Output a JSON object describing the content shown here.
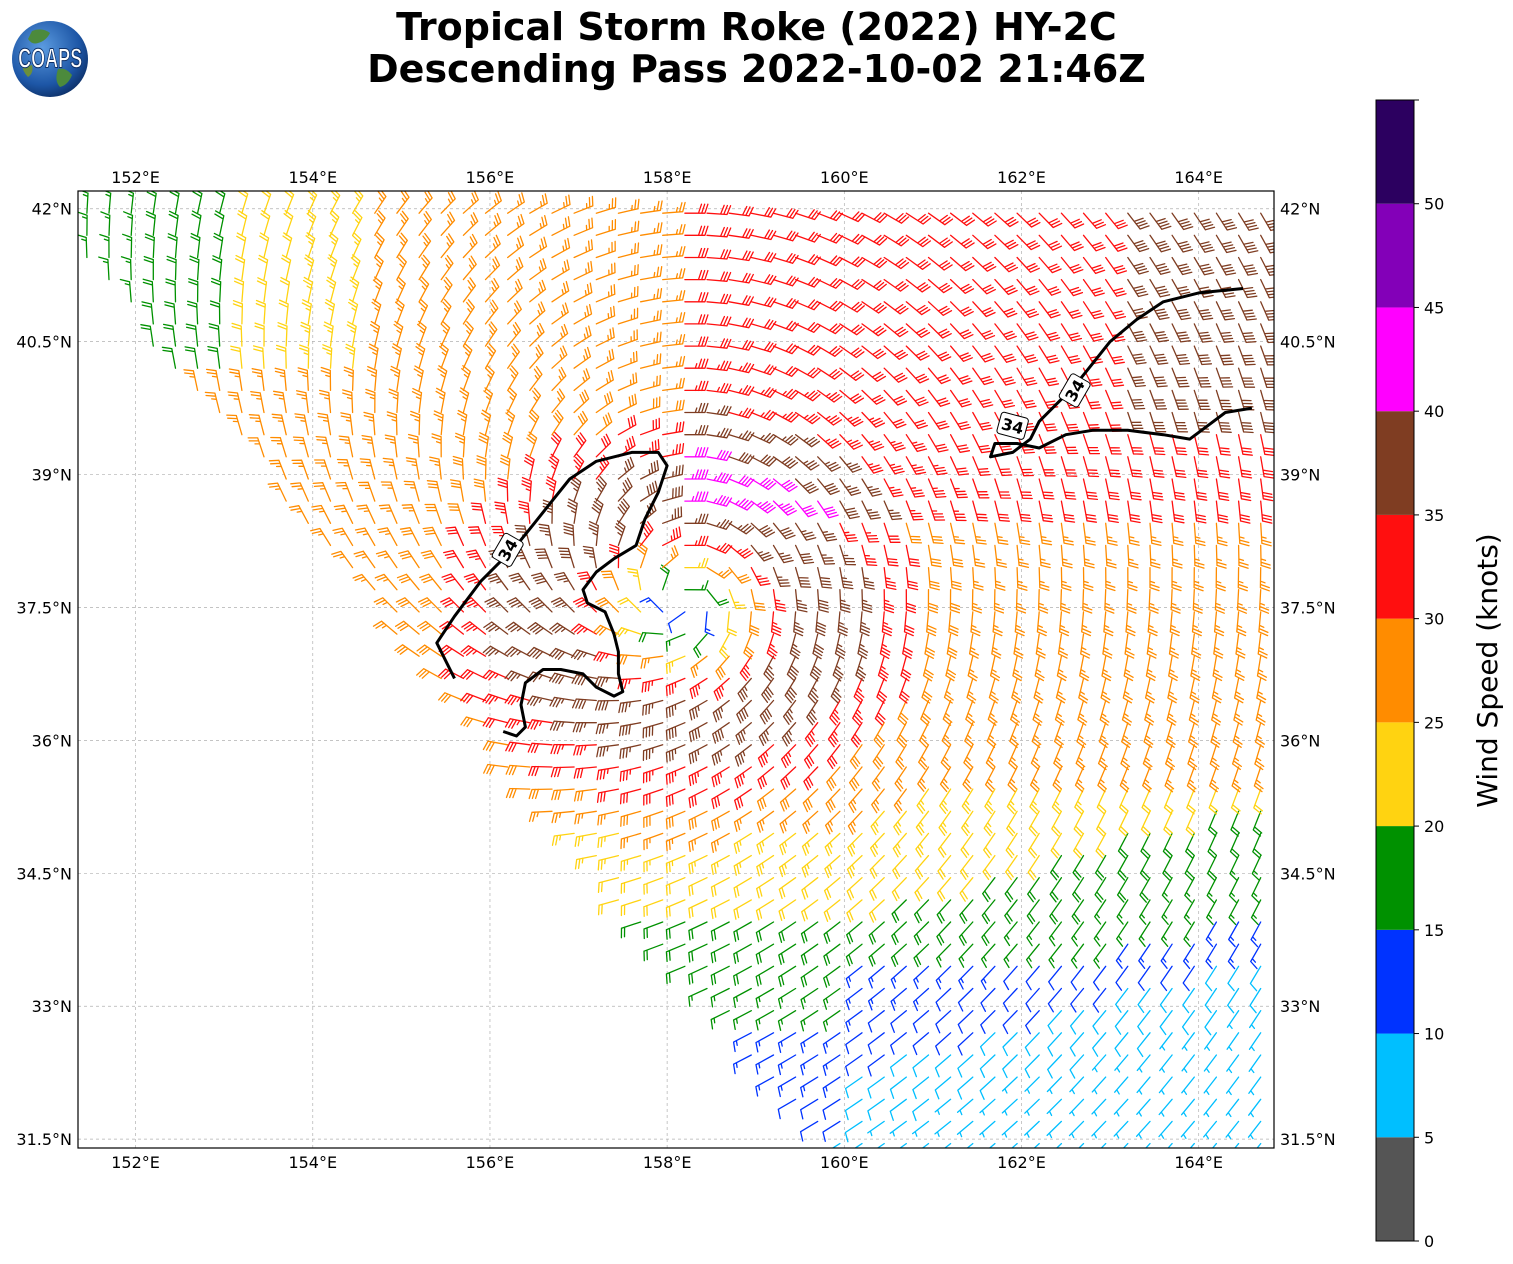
{
  "title": {
    "line1": "Tropical Storm Roke (2022) HY-2C",
    "line2": "Descending Pass 2022-10-02 21:46Z"
  },
  "logo": {
    "text": "COAPS"
  },
  "map": {
    "lon_ticks": [
      "152°E",
      "154°E",
      "156°E",
      "158°E",
      "160°E",
      "162°E",
      "164°E"
    ],
    "lon_values": [
      152,
      154,
      156,
      158,
      160,
      162,
      164
    ],
    "lat_ticks": [
      "42°N",
      "40.5°N",
      "39°N",
      "37.5°N",
      "36°N",
      "34.5°N",
      "33°N",
      "31.5°N"
    ],
    "lat_values": [
      42,
      40.5,
      39,
      37.5,
      36,
      34.5,
      33,
      31.5
    ],
    "lon_range": [
      151.35,
      164.85
    ],
    "lat_range": [
      31.4,
      42.2
    ],
    "contour_label": "34",
    "contour_level_knots": 34,
    "storm_center": {
      "lon": 158.2,
      "lat": 37.45
    }
  },
  "colorbar": {
    "title": "Wind Speed (knots)",
    "tick_labels": [
      "0",
      "5",
      "10",
      "15",
      "20",
      "25",
      "30",
      "35",
      "40",
      "45",
      "50"
    ],
    "bins": [
      {
        "from": 0,
        "to": 5,
        "color": "#555555"
      },
      {
        "from": 5,
        "to": 10,
        "color": "#00bfff"
      },
      {
        "from": 10,
        "to": 15,
        "color": "#0033ff"
      },
      {
        "from": 15,
        "to": 20,
        "color": "#009100"
      },
      {
        "from": 20,
        "to": 25,
        "color": "#ffd311"
      },
      {
        "from": 25,
        "to": 30,
        "color": "#ff8c00"
      },
      {
        "from": 30,
        "to": 35,
        "color": "#ff0f0f"
      },
      {
        "from": 35,
        "to": 40,
        "color": "#7f3d22"
      },
      {
        "from": 40,
        "to": 45,
        "color": "#ff00ff"
      },
      {
        "from": 45,
        "to": 50,
        "color": "#8300b8"
      },
      {
        "from": 50,
        "to": 55,
        "color": "#2c0060"
      }
    ]
  }
}
